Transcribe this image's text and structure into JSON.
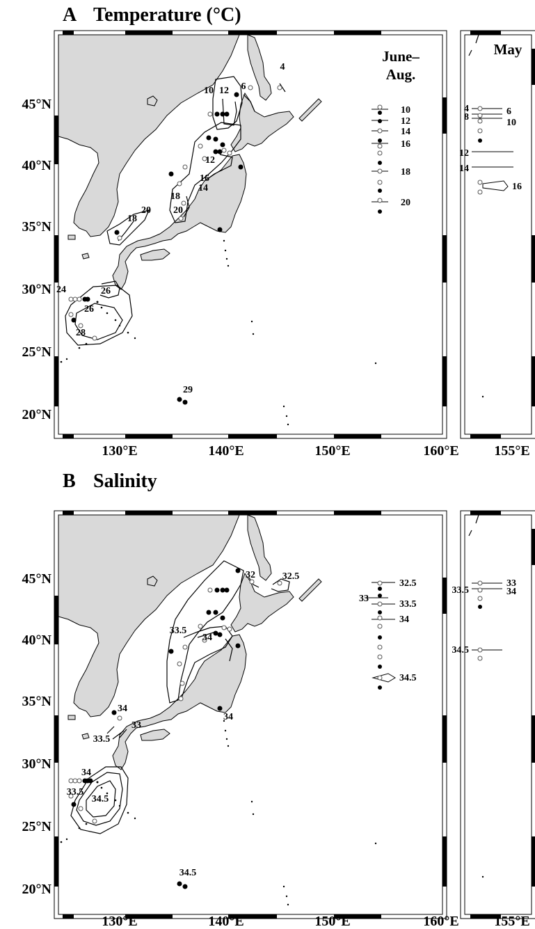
{
  "panels": [
    {
      "letter": "A",
      "title": "Temperature (°C)",
      "lat_labels": [
        "45°N",
        "40°N",
        "35°N",
        "30°N",
        "25°N",
        "20°N"
      ],
      "lon_labels": [
        "130°E",
        "140°E",
        "150°E",
        "160°E"
      ],
      "inset_lon_label": "155°E",
      "main_header": [
        "June–",
        "Aug."
      ],
      "inset_header": [
        "May"
      ],
      "isotherms": [
        "4",
        "6",
        "10",
        "12",
        "12",
        "14",
        "16",
        "18",
        "20",
        "18",
        "20",
        "24",
        "26",
        "26",
        "28",
        "29"
      ],
      "legend": [
        "10",
        "12",
        "14",
        "16",
        "18",
        "20"
      ],
      "inset_legend_left": [
        "4",
        "8",
        "12",
        "14"
      ],
      "inset_legend_right": [
        "6",
        "10",
        "16"
      ]
    },
    {
      "letter": "B",
      "title": "Salinity",
      "lat_labels": [
        "45°N",
        "40°N",
        "35°N",
        "30°N",
        "25°N",
        "20°N"
      ],
      "lon_labels": [
        "130°E",
        "140°E",
        "150°E",
        "160°E"
      ],
      "inset_lon_label": "155°E",
      "isohalines": [
        "32",
        "32.5",
        "33.5",
        "34",
        "34",
        "33",
        "33.5",
        "34",
        "34",
        "33.5",
        "34.5",
        "34.5"
      ],
      "legend_left": [
        "33"
      ],
      "legend_right": [
        "32.5",
        "33.5",
        "34",
        "34.5"
      ],
      "inset_legend_left": [
        "33.5",
        "34.5"
      ],
      "inset_legend_right": [
        "33",
        "34"
      ]
    }
  ],
  "colors": {
    "land": "#d9d9d9",
    "coast": "#000000",
    "ocean": "#ffffff",
    "station_filled": "#000000",
    "station_open": "#ffffff"
  }
}
